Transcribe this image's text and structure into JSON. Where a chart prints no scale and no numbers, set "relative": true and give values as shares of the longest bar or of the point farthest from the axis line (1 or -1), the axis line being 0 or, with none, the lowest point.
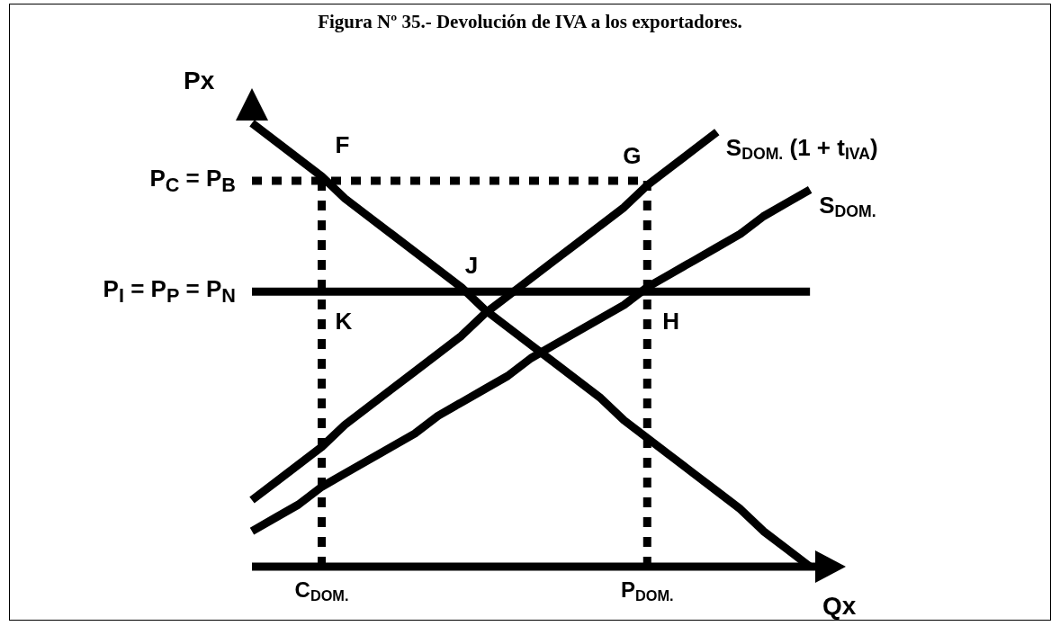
{
  "chart_data": {
    "type": "line",
    "title": "Figura Nº 35.- Devolución de IVA a los exportadores.",
    "xlabel": "Qx",
    "ylabel": "Px",
    "relative": true,
    "marker": "none",
    "line_style": "solid",
    "categories": [
      null,
      null,
      null,
      "C$_{DOM.}$",
      null,
      null,
      null,
      null,
      null,
      null,
      null,
      null,
      null,
      null,
      null,
      null,
      null,
      "P$_{DOM.}$",
      null,
      null,
      null,
      null,
      null,
      null,
      null,
      null
    ],
    "series": [
      {
        "color": "#000000",
        "values": [
          1.0,
          0.96,
          0.92,
          0.88,
          0.83,
          0.79,
          0.75,
          0.71,
          0.67,
          0.63,
          0.58,
          0.54,
          0.5,
          0.46,
          0.42,
          0.38,
          0.33,
          0.29,
          0.25,
          0.21,
          0.17,
          0.13,
          0.08,
          0.04,
          0.0,
          null
        ]
      },
      {
        "name": "S$_{DOM.}$ (1 + t$_{IVA}$)",
        "color": "#000000",
        "values": [
          0.15,
          0.19,
          0.23,
          0.27,
          0.32,
          0.36,
          0.4,
          0.44,
          0.48,
          0.52,
          0.57,
          0.61,
          0.65,
          0.69,
          0.73,
          0.77,
          0.81,
          0.86,
          0.9,
          0.94,
          0.98,
          null,
          null,
          null,
          null,
          null
        ]
      },
      {
        "name": "S$_{DOM.}$",
        "color": "#000000",
        "values": [
          0.08,
          0.11,
          0.14,
          0.18,
          0.21,
          0.24,
          0.27,
          0.3,
          0.34,
          0.37,
          0.4,
          0.43,
          0.47,
          0.5,
          0.53,
          0.56,
          0.59,
          0.63,
          0.66,
          0.69,
          0.72,
          0.75,
          0.79,
          0.82,
          0.85,
          null
        ]
      }
    ],
    "ref_lines": [
      {
        "axis": "y",
        "value": 0.87,
        "label": "P$_{C}$ = P$_{B}$",
        "line_style": "dotted",
        "color": "#000000"
      },
      {
        "axis": "y",
        "value": 0.62,
        "label": "P$_{I}$ = P$_{P}$ = P$_{N}$",
        "line_style": "solid",
        "color": "#000000"
      },
      {
        "axis": "x",
        "value": "C$_{DOM.}$",
        "line_style": "dotted",
        "color": "#000000"
      },
      {
        "axis": "x",
        "value": "P$_{DOM.}$",
        "line_style": "dotted",
        "color": "#000000"
      }
    ],
    "annotations": [
      {
        "text": "F",
        "x": "C$_{DOM.}$",
        "y": 0.87
      },
      {
        "text": "G",
        "x": "P$_{DOM.}$",
        "y": 0.87
      },
      {
        "text": "J",
        "y": 0.62
      },
      {
        "text": "K",
        "x": "C$_{DOM.}$",
        "y": 0.62
      },
      {
        "text": "H",
        "x": "P$_{DOM.}$",
        "y": 0.62
      }
    ]
  }
}
